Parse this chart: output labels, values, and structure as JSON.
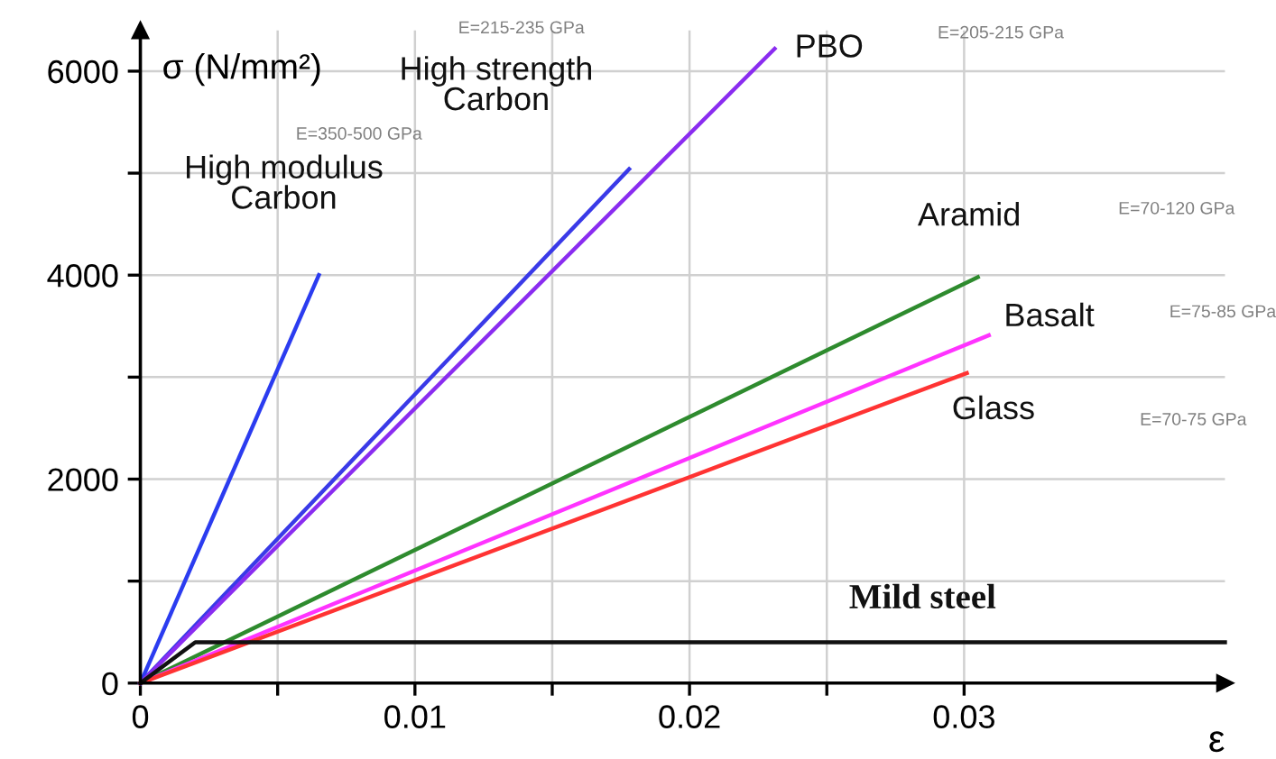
{
  "chart_data": {
    "type": "line",
    "xlabel": "ε",
    "ylabel": "σ (N/mm²)",
    "xlim": [
      0,
      0.0395
    ],
    "ylim": [
      0,
      6400
    ],
    "xticks": [
      0,
      {
        "value": 0.005,
        "label": null
      },
      0.01,
      {
        "value": 0.015,
        "label": null
      },
      0.02,
      {
        "value": 0.025,
        "label": null
      },
      0.03
    ],
    "yticks": [
      0,
      {
        "value": 1000,
        "label": null
      },
      2000,
      {
        "value": 3000,
        "label": null
      },
      4000,
      {
        "value": 5000,
        "label": null
      },
      6000
    ],
    "grid": true,
    "marker": "none",
    "line_style": "solid",
    "series": [
      {
        "name": "High modulus\nCarbon",
        "color": "#2b3cf0",
        "x": [
          0,
          0.0065
        ],
        "values": [
          0,
          4000
        ]
      },
      {
        "name": "High strength\nCarbon",
        "color": "#3a3ae8",
        "x": [
          0,
          0.0178
        ],
        "values": [
          0,
          5040
        ]
      },
      {
        "name": "PBO",
        "color": "#8a2cf0",
        "x": [
          0,
          0.0231
        ],
        "values": [
          0,
          6220
        ]
      },
      {
        "name": "Aramid",
        "color": "#2e8b2e",
        "x": [
          0,
          0.0305
        ],
        "values": [
          0,
          3980
        ]
      },
      {
        "name": "Basalt",
        "color": "#ff33ff",
        "x": [
          0,
          0.0309
        ],
        "values": [
          0,
          3410
        ]
      },
      {
        "name": "Glass",
        "color": "#ff3333",
        "x": [
          0,
          0.0301
        ],
        "values": [
          0,
          3040
        ]
      },
      {
        "name": "Mild steel",
        "color": "#111111",
        "x": [
          0,
          0.002,
          0.0395
        ],
        "values": [
          0,
          400,
          400
        ]
      }
    ],
    "annotations": [
      "E=350-500 GPa",
      "E=215-235 GPa",
      "E=205-215 GPa",
      "E=70-120 GPa",
      "E=75-85 GPa",
      "E=70-75 GPa"
    ]
  }
}
